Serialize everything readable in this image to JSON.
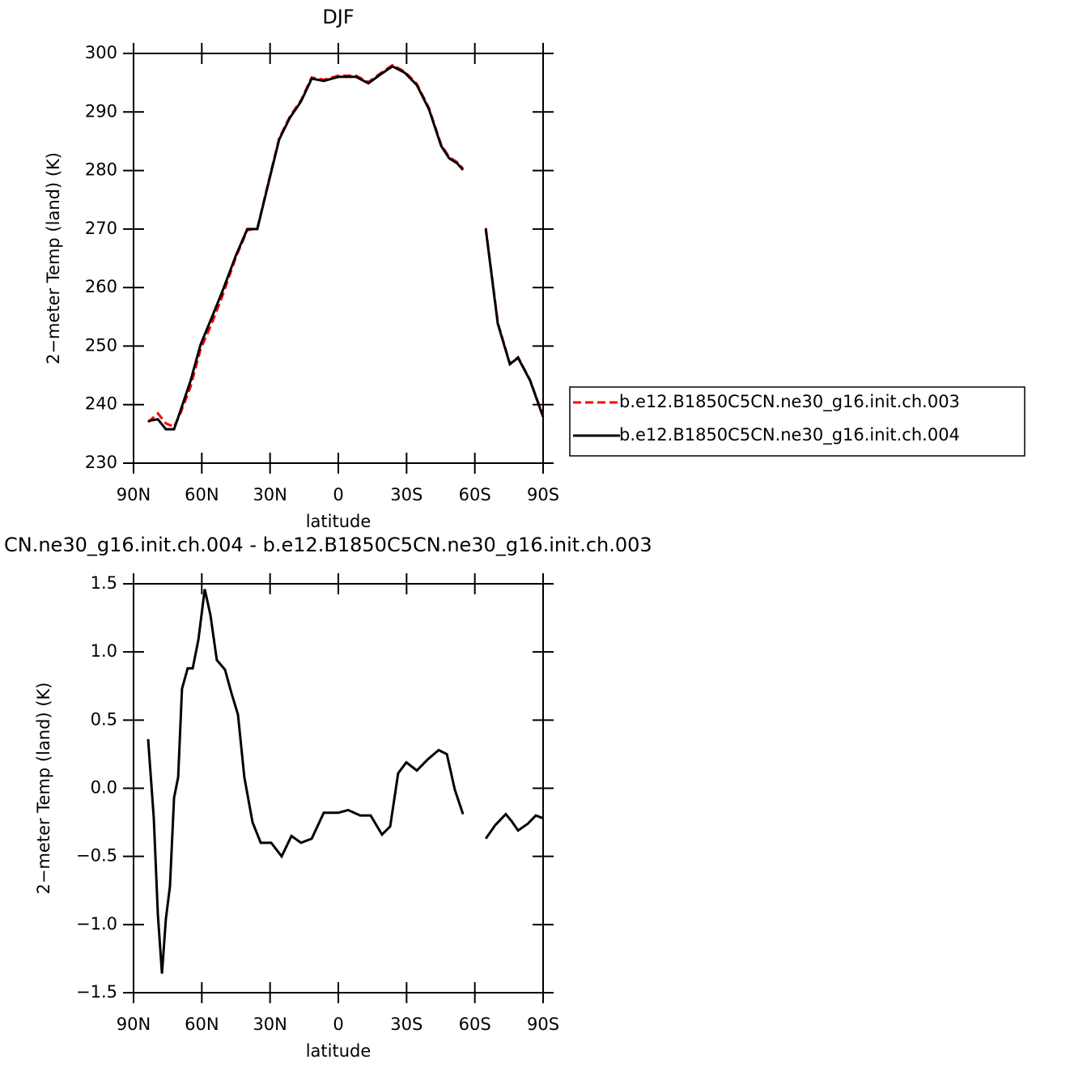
{
  "chart_data": [
    {
      "type": "line",
      "title": "DJF",
      "xlabel": "latitude",
      "ylabel": "2−meter Temp (land) (K)",
      "x": [
        83.6,
        79.3,
        75.8,
        72.2,
        69.7,
        65,
        60.5,
        55.5,
        51,
        45,
        40,
        35.6,
        30.6,
        26,
        21.3,
        16.4,
        11.7,
        6.4,
        0,
        -7.8,
        -13.2,
        -18.5,
        -23.8,
        -29.2,
        -34.5,
        -39.8,
        -45.2,
        -48.7,
        -52.3,
        -54.8,
        -60,
        -64.8,
        -70.1,
        -75.4,
        -79,
        -84.3,
        -90
      ],
      "series": [
        {
          "name": "b.e12.B1850C5CN.ne30_g16.init.ch.003",
          "color": "#ff0000",
          "line_style": "dashed",
          "values": [
            237.0,
            238.5,
            236.8,
            236.2,
            238.2,
            243.0,
            249.5,
            254.0,
            258.5,
            265.2,
            269.8,
            270.1,
            278.2,
            285.5,
            289.2,
            292.0,
            295.9,
            295.5,
            296.2,
            296.2,
            295.1,
            296.6,
            298.0,
            296.9,
            294.8,
            290.7,
            284.4,
            282.3,
            281.4,
            280.3,
            null,
            270.2,
            254.0,
            247.0,
            248.1,
            244.2,
            238.0
          ]
        },
        {
          "name": "b.e12.B1850C5CN.ne30_g16.init.ch.004",
          "color": "#000000",
          "line_style": "solid",
          "values": [
            237.2,
            237.5,
            235.8,
            235.8,
            238.6,
            244.0,
            250.3,
            255.0,
            259.3,
            265.5,
            270.0,
            270.0,
            278.0,
            285.3,
            289.0,
            291.8,
            295.7,
            295.3,
            296.0,
            296.0,
            294.9,
            296.4,
            297.8,
            296.7,
            294.6,
            290.5,
            284.2,
            282.1,
            281.2,
            280.1,
            null,
            270.0,
            253.8,
            246.9,
            248.0,
            244.1,
            237.9
          ]
        }
      ],
      "xlim": [
        90,
        -90
      ],
      "xticks": [
        {
          "value": 90,
          "label": "90N"
        },
        {
          "value": 60,
          "label": "60N"
        },
        {
          "value": 30,
          "label": "30N"
        },
        0,
        {
          "value": -30,
          "label": "30S"
        },
        {
          "value": -60,
          "label": "60S"
        },
        {
          "value": -90,
          "label": "90S"
        }
      ],
      "ylim": [
        230,
        300
      ],
      "yticks": [
        230,
        240,
        250,
        260,
        270,
        280,
        290,
        300
      ],
      "legend": "right"
    },
    {
      "type": "line",
      "title": "CN.ne30_g16.init.ch.004 - b.e12.B1850C5CN.ne30_g16.init.ch.003",
      "xlabel": "latitude",
      "ylabel": "2−meter Temp (land) (K)",
      "x": [
        83.6,
        81.1,
        79.3,
        77.5,
        75.8,
        74,
        72.2,
        70.4,
        68.7,
        66.2,
        64,
        61.5,
        58.7,
        56.2,
        53.4,
        49.8,
        47,
        44.1,
        41.3,
        37.7,
        34.1,
        29.5,
        24.9,
        20.6,
        16.4,
        11.7,
        6.4,
        0,
        -4.3,
        -9.6,
        -14.2,
        -19.2,
        -22.8,
        -26.3,
        -29.9,
        -34.5,
        -39.2,
        -44.1,
        -47.7,
        -51.2,
        -54.8,
        -60,
        -64.8,
        -69,
        -73.6,
        -76.1,
        -79,
        -83.3,
        -86.8,
        -90
      ],
      "series": [
        {
          "color": "#000000",
          "line_style": "solid",
          "values": [
            0.36,
            -0.22,
            -0.93,
            -1.36,
            -0.96,
            -0.72,
            -0.07,
            0.08,
            0.73,
            0.88,
            0.88,
            1.09,
            1.46,
            1.27,
            0.94,
            0.87,
            0.7,
            0.54,
            0.08,
            -0.25,
            -0.4,
            -0.4,
            -0.5,
            -0.35,
            -0.4,
            -0.37,
            -0.18,
            -0.18,
            -0.16,
            -0.2,
            -0.2,
            -0.34,
            -0.28,
            0.11,
            0.19,
            0.13,
            0.21,
            0.28,
            0.25,
            -0.01,
            -0.19,
            null,
            -0.37,
            -0.27,
            -0.19,
            -0.24,
            -0.31,
            -0.26,
            -0.2,
            -0.22
          ]
        }
      ],
      "xlim": [
        90,
        -90
      ],
      "xticks": [
        {
          "value": 90,
          "label": "90N"
        },
        {
          "value": 60,
          "label": "60N"
        },
        {
          "value": 30,
          "label": "30N"
        },
        0,
        {
          "value": -30,
          "label": "30S"
        },
        {
          "value": -60,
          "label": "60S"
        },
        {
          "value": -90,
          "label": "90S"
        }
      ],
      "ylim": [
        -1.5,
        1.5
      ],
      "yticks": [
        {
          "value": -1.5,
          "label": "−1.5"
        },
        {
          "value": -1.0,
          "label": "−1.0"
        },
        {
          "value": -0.5,
          "label": "−0.5"
        },
        {
          "value": 0.0,
          "label": "0.0"
        },
        {
          "value": 0.5,
          "label": "0.5"
        },
        {
          "value": 1.0,
          "label": "1.0"
        },
        {
          "value": 1.5,
          "label": "1.5"
        }
      ]
    }
  ]
}
